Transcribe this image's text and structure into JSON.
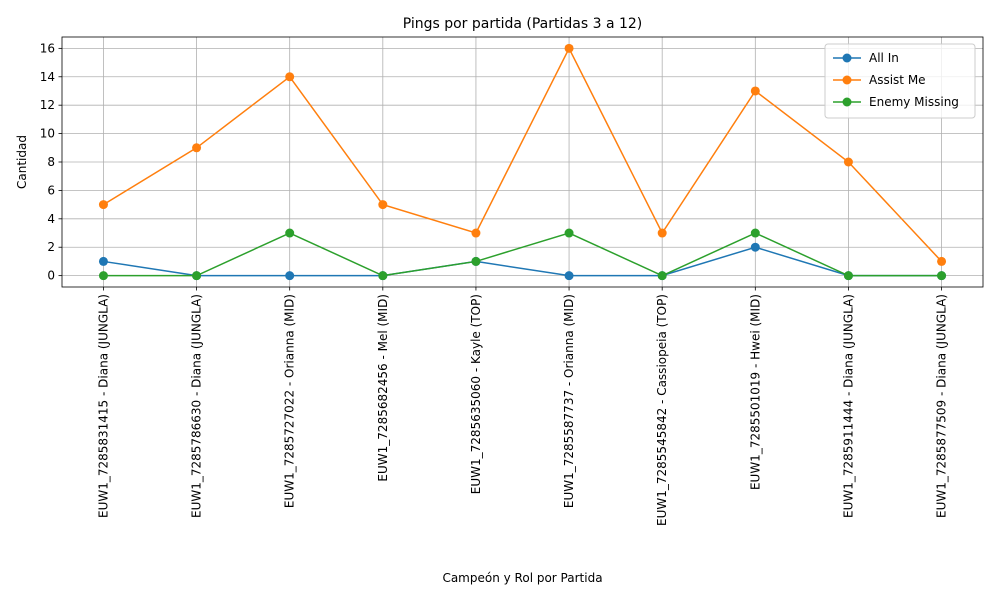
{
  "chart_data": {
    "type": "line",
    "title": "Pings por partida (Partidas 3 a 12)",
    "xlabel": "Campeón y Rol por Partida",
    "ylabel": "Cantidad",
    "categories": [
      "EUW1_7285831415 - Diana (JUNGLA)",
      "EUW1_7285786630 - Diana (JUNGLA)",
      "EUW1_7285727022 - Orianna (MID)",
      "EUW1_7285682456 - Mel (MID)",
      "EUW1_7285635060 - Kayle (TOP)",
      "EUW1_7285587737 - Orianna (MID)",
      "EUW1_7285545842 - Cassiopeia (TOP)",
      "EUW1_7285501019 - Hwei (MID)",
      "EUW1_7285911444 - Diana (JUNGLA)",
      "EUW1_7285877509 - Diana (JUNGLA)"
    ],
    "series": [
      {
        "name": "All In",
        "color": "#1f77b4",
        "values": [
          1,
          0,
          0,
          0,
          1,
          0,
          0,
          2,
          0,
          0
        ]
      },
      {
        "name": "Assist Me",
        "color": "#ff7f0e",
        "values": [
          5,
          9,
          14,
          5,
          3,
          16,
          3,
          13,
          8,
          1
        ]
      },
      {
        "name": "Enemy Missing",
        "color": "#2ca02c",
        "values": [
          0,
          0,
          3,
          0,
          1,
          3,
          0,
          3,
          0,
          0
        ]
      }
    ],
    "ylim": [
      -0.8,
      16.8
    ],
    "yticks": [
      0,
      2,
      4,
      6,
      8,
      10,
      12,
      14,
      16
    ],
    "grid": true,
    "legend_position": "top-right"
  }
}
